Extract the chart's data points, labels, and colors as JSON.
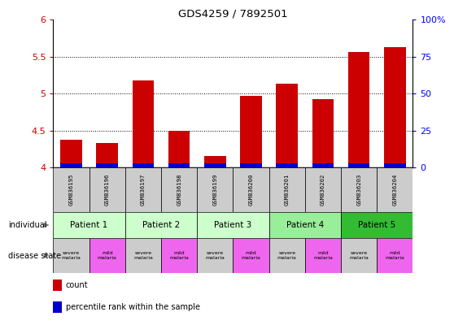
{
  "title": "GDS4259 / 7892501",
  "samples": [
    "GSM836195",
    "GSM836196",
    "GSM836197",
    "GSM836198",
    "GSM836199",
    "GSM836200",
    "GSM836201",
    "GSM836202",
    "GSM836203",
    "GSM836204"
  ],
  "red_values": [
    4.37,
    4.33,
    5.18,
    4.49,
    4.15,
    4.97,
    5.13,
    4.92,
    5.56,
    5.63
  ],
  "blue_heights": [
    0.05,
    0.05,
    0.05,
    0.05,
    0.05,
    0.05,
    0.05,
    0.05,
    0.05,
    0.05
  ],
  "ylim": [
    4.0,
    6.0
  ],
  "yticks_left": [
    4.0,
    4.5,
    5.0,
    5.5,
    6.0
  ],
  "yticks_right": [
    0,
    25,
    50,
    75,
    100
  ],
  "patients": [
    {
      "label": "Patient 1",
      "start": 0,
      "end": 2,
      "color": "#ccffcc"
    },
    {
      "label": "Patient 2",
      "start": 2,
      "end": 4,
      "color": "#ccffcc"
    },
    {
      "label": "Patient 3",
      "start": 4,
      "end": 6,
      "color": "#ccffcc"
    },
    {
      "label": "Patient 4",
      "start": 6,
      "end": 8,
      "color": "#99ee99"
    },
    {
      "label": "Patient 5",
      "start": 8,
      "end": 10,
      "color": "#33bb33"
    }
  ],
  "disease_states": [
    {
      "label": "severe\nmalaria",
      "color": "#cccccc"
    },
    {
      "label": "mild\nmalaria",
      "color": "#ee66ee"
    },
    {
      "label": "severe\nmalaria",
      "color": "#cccccc"
    },
    {
      "label": "mild\nmalaria",
      "color": "#ee66ee"
    },
    {
      "label": "severe\nmalaria",
      "color": "#cccccc"
    },
    {
      "label": "mild\nmalaria",
      "color": "#ee66ee"
    },
    {
      "label": "severe\nmalaria",
      "color": "#cccccc"
    },
    {
      "label": "mild\nmalaria",
      "color": "#ee66ee"
    },
    {
      "label": "severe\nmalaria",
      "color": "#cccccc"
    },
    {
      "label": "mild\nmalaria",
      "color": "#ee66ee"
    }
  ],
  "bar_width": 0.6,
  "red_color": "#cc0000",
  "blue_color": "#0000cc",
  "label_count": "count",
  "label_percentile": "percentile rank within the sample",
  "sample_bg_color": "#cccccc"
}
